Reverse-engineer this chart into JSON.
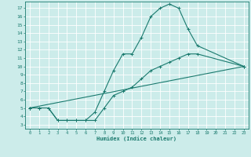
{
  "title": "",
  "xlabel": "Humidex (Indice chaleur)",
  "background_color": "#ccecea",
  "line_color": "#1a7a6e",
  "grid_color": "#ffffff",
  "xlim": [
    -0.5,
    23.5
  ],
  "ylim": [
    2.5,
    17.8
  ],
  "xticks": [
    0,
    1,
    2,
    3,
    4,
    5,
    6,
    7,
    8,
    9,
    10,
    11,
    12,
    13,
    14,
    15,
    16,
    17,
    18,
    19,
    20,
    21,
    22,
    23
  ],
  "yticks": [
    3,
    4,
    5,
    6,
    7,
    8,
    9,
    10,
    11,
    12,
    13,
    14,
    15,
    16,
    17
  ],
  "line1_x": [
    0,
    1,
    2,
    3,
    4,
    5,
    6,
    7,
    8,
    9,
    10,
    11,
    12,
    13,
    14,
    15,
    16,
    17,
    18,
    23
  ],
  "line1_y": [
    5,
    5,
    5,
    3.5,
    3.5,
    3.5,
    3.5,
    4.5,
    7,
    9.5,
    11.5,
    11.5,
    13.5,
    16,
    17,
    17.5,
    17,
    14.5,
    12.5,
    10
  ],
  "line2_x": [
    0,
    1,
    2,
    3,
    4,
    5,
    6,
    7,
    8,
    9,
    10,
    11,
    12,
    13,
    14,
    15,
    16,
    17,
    18,
    23
  ],
  "line2_y": [
    5,
    5,
    5,
    3.5,
    3.5,
    3.5,
    3.5,
    3.5,
    5,
    6.5,
    7,
    7.5,
    8.5,
    9.5,
    10,
    10.5,
    11,
    11.5,
    11.5,
    10
  ],
  "line3_x": [
    0,
    23
  ],
  "line3_y": [
    5,
    10
  ]
}
